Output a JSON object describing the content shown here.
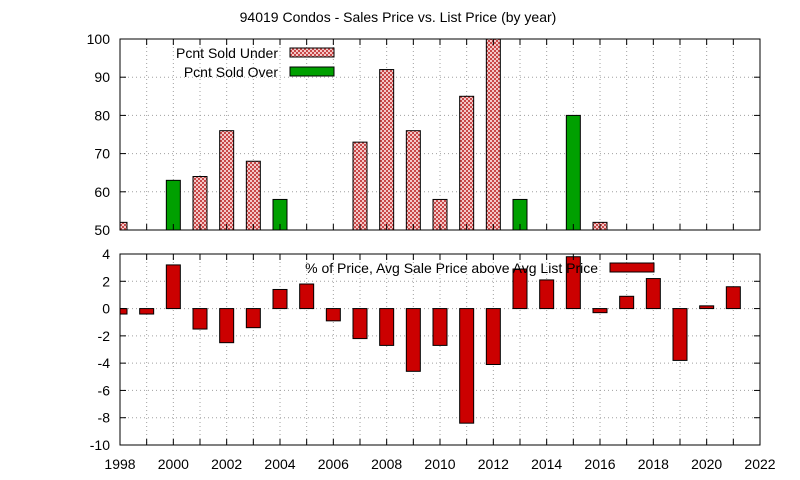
{
  "colors": {
    "under_fill": "#f4c8c8",
    "under_dot": "#c84848",
    "over": "#00a000",
    "pct": "#cc0000",
    "grid": "#a0a0a0"
  },
  "chart_data": [
    {
      "type": "bar",
      "title": "94019 Condos - Sales Price vs. List Price (by year)",
      "xlabel": "",
      "ylabel": "",
      "xlim": [
        1998,
        2022
      ],
      "ylim": [
        50,
        100
      ],
      "x_ticks": [
        1998,
        2000,
        2002,
        2004,
        2006,
        2008,
        2010,
        2012,
        2014,
        2016,
        2018,
        2020,
        2022
      ],
      "y_ticks": [
        50,
        60,
        70,
        80,
        90,
        100
      ],
      "grid": true,
      "legend_position": "top-left",
      "series": [
        {
          "name": "Pcnt Sold Under",
          "points": [
            {
              "x": 1998,
              "y": 52
            },
            {
              "x": 2001,
              "y": 64
            },
            {
              "x": 2002,
              "y": 76
            },
            {
              "x": 2003,
              "y": 68
            },
            {
              "x": 2007,
              "y": 73
            },
            {
              "x": 2008,
              "y": 92
            },
            {
              "x": 2009,
              "y": 76
            },
            {
              "x": 2010,
              "y": 58
            },
            {
              "x": 2011,
              "y": 85
            },
            {
              "x": 2012,
              "y": 100
            },
            {
              "x": 2016,
              "y": 52
            }
          ]
        },
        {
          "name": "Pcnt Sold Over",
          "points": [
            {
              "x": 2000,
              "y": 63
            },
            {
              "x": 2004,
              "y": 58
            },
            {
              "x": 2013,
              "y": 58
            },
            {
              "x": 2015,
              "y": 80
            }
          ]
        }
      ]
    },
    {
      "type": "bar",
      "title": "",
      "xlabel": "",
      "ylabel": "",
      "xlim": [
        1998,
        2022
      ],
      "ylim": [
        -10,
        4
      ],
      "x_ticks": [
        1998,
        2000,
        2002,
        2004,
        2006,
        2008,
        2010,
        2012,
        2014,
        2016,
        2018,
        2020,
        2022
      ],
      "y_ticks": [
        -10,
        -8,
        -6,
        -4,
        -2,
        0,
        2,
        4
      ],
      "grid": true,
      "legend_position": "top-center",
      "series": [
        {
          "name": "% of Price, Avg Sale Price above Avg List Price",
          "points": [
            {
              "x": 1998,
              "y": -0.4
            },
            {
              "x": 1999,
              "y": -0.4
            },
            {
              "x": 2000,
              "y": 3.2
            },
            {
              "x": 2001,
              "y": -1.5
            },
            {
              "x": 2002,
              "y": -2.5
            },
            {
              "x": 2003,
              "y": -1.4
            },
            {
              "x": 2004,
              "y": 1.4
            },
            {
              "x": 2005,
              "y": 1.8
            },
            {
              "x": 2006,
              "y": -0.9
            },
            {
              "x": 2007,
              "y": -2.2
            },
            {
              "x": 2008,
              "y": -2.7
            },
            {
              "x": 2009,
              "y": -4.6
            },
            {
              "x": 2010,
              "y": -2.7
            },
            {
              "x": 2011,
              "y": -8.4
            },
            {
              "x": 2012,
              "y": -4.1
            },
            {
              "x": 2013,
              "y": 2.9
            },
            {
              "x": 2014,
              "y": 2.1
            },
            {
              "x": 2015,
              "y": 3.8
            },
            {
              "x": 2016,
              "y": -0.3
            },
            {
              "x": 2017,
              "y": 0.9
            },
            {
              "x": 2018,
              "y": 2.2
            },
            {
              "x": 2019,
              "y": -3.8
            },
            {
              "x": 2020,
              "y": 0.2
            },
            {
              "x": 2021,
              "y": 1.6
            }
          ]
        }
      ]
    }
  ]
}
